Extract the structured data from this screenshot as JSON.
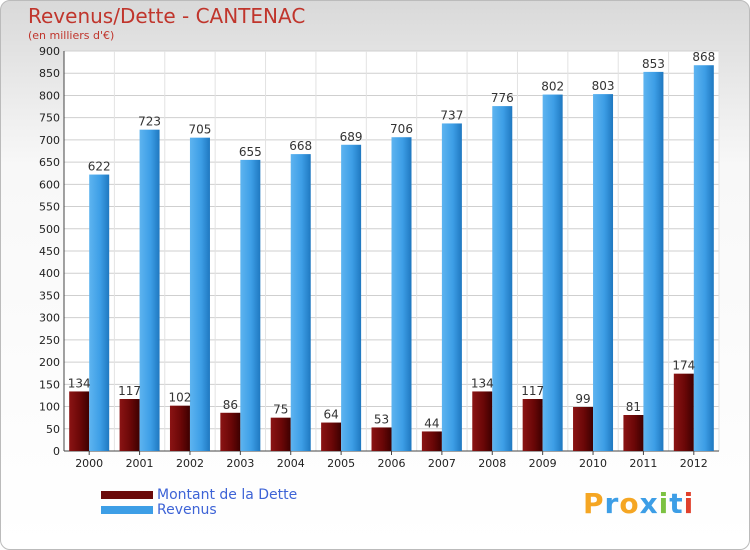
{
  "chart_data": {
    "type": "bar",
    "title": "Revenus/Dette - CANTENAC",
    "subtitle": "(en milliers d'€)",
    "categories": [
      "2000",
      "2001",
      "2002",
      "2003",
      "2004",
      "2005",
      "2006",
      "2007",
      "2008",
      "2009",
      "2010",
      "2011",
      "2012"
    ],
    "series": [
      {
        "name": "Montant de la Dette",
        "color": "#7a0c0c",
        "values": [
          134,
          117,
          102,
          86,
          75,
          64,
          53,
          44,
          134,
          117,
          99,
          81,
          174
        ]
      },
      {
        "name": "Revenus",
        "color": "#3d9ee6",
        "values": [
          622,
          723,
          705,
          655,
          668,
          689,
          706,
          737,
          776,
          802,
          803,
          853,
          868
        ]
      }
    ],
    "ylim": [
      0,
      900
    ],
    "ytick_step": 50,
    "xlabel": "",
    "ylabel": "",
    "grid": true,
    "legend_position": "bottom-left"
  },
  "legend": {
    "items": [
      {
        "label": "Montant de la Dette",
        "color": "#6b0a0a"
      },
      {
        "label": "Revenus",
        "color": "#3d9ee6"
      }
    ]
  },
  "logo": {
    "text": "Proxiti"
  }
}
